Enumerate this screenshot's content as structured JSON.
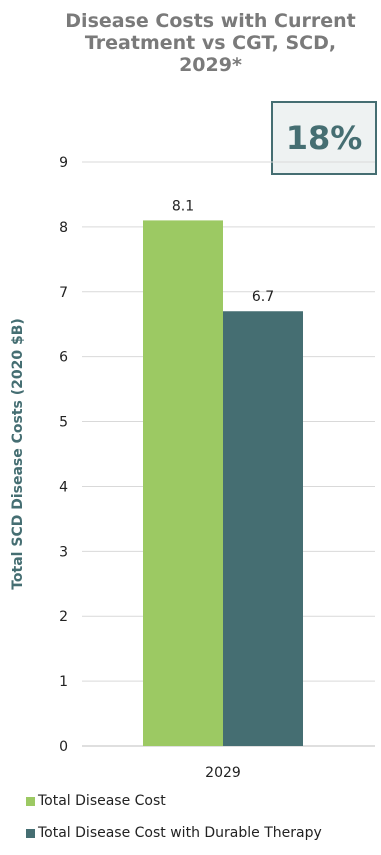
{
  "chart_data": {
    "type": "bar",
    "title": "Disease Costs with Current Treatment vs CGT, SCD, 2029*",
    "title_lines": [
      "Disease Costs with Current",
      "Treatment vs CGT, SCD,",
      "2029*"
    ],
    "ylabel": "Total SCD Disease Costs (2020 $B)",
    "xlabel": "",
    "categories": [
      "2029"
    ],
    "ylim": [
      0,
      9
    ],
    "yticks": [
      "0",
      "1",
      "2",
      "3",
      "4",
      "5",
      "6",
      "7",
      "8",
      "9"
    ],
    "grid": true,
    "legend_position": "bottom",
    "series": [
      {
        "name": "Total Disease Cost",
        "values": [
          8.1
        ],
        "labels": [
          "8.1"
        ],
        "color": "#9cc963"
      },
      {
        "name": "Total Disease Cost with Durable Therapy",
        "values": [
          6.7
        ],
        "labels": [
          "6.7"
        ],
        "color": "#456e72"
      }
    ],
    "annotation": "18%"
  }
}
